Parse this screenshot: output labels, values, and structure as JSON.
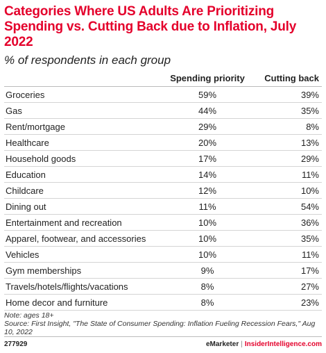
{
  "header": {
    "title": "Categories Where US Adults Are Prioritizing Spending vs. Cutting Back due to Inflation, July 2022",
    "subtitle": "% of respondents in each group"
  },
  "chart_data": {
    "type": "table",
    "title": "Categories Where US Adults Are Prioritizing Spending vs. Cutting Back due to Inflation, July 2022",
    "subtitle": "% of respondents in each group",
    "columns": [
      "",
      "Spending priority",
      "Cutting back"
    ],
    "rows": [
      {
        "category": "Groceries",
        "spending": "59%",
        "cutting": "39%"
      },
      {
        "category": "Gas",
        "spending": "44%",
        "cutting": "35%"
      },
      {
        "category": "Rent/mortgage",
        "spending": "29%",
        "cutting": "8%"
      },
      {
        "category": "Healthcare",
        "spending": "20%",
        "cutting": "13%"
      },
      {
        "category": "Household goods",
        "spending": "17%",
        "cutting": "29%"
      },
      {
        "category": "Education",
        "spending": "14%",
        "cutting": "11%"
      },
      {
        "category": "Childcare",
        "spending": "12%",
        "cutting": "10%"
      },
      {
        "category": "Dining out",
        "spending": "11%",
        "cutting": "54%"
      },
      {
        "category": "Entertainment and recreation",
        "spending": "10%",
        "cutting": "36%"
      },
      {
        "category": "Apparel, footwear, and accessories",
        "spending": "10%",
        "cutting": "35%"
      },
      {
        "category": "Vehicles",
        "spending": "10%",
        "cutting": "11%"
      },
      {
        "category": "Gym memberships",
        "spending": "9%",
        "cutting": "17%"
      },
      {
        "category": "Travels/hotels/flights/vacations",
        "spending": "8%",
        "cutting": "27%"
      },
      {
        "category": "Home decor and furniture",
        "spending": "8%",
        "cutting": "23%"
      }
    ]
  },
  "footer": {
    "note": "Note: ages 18+",
    "source": "Source: First Insight, \"The State of Consumer Spending: Inflation Fueling Recession Fears,\" Aug 10, 2022",
    "chart_id": "277929",
    "brand_emarketer": "eMarketer",
    "brand_separator": "|",
    "brand_insider": "InsiderIntelligence.com"
  },
  "colors": {
    "accent": "#e4002b",
    "text": "#222222",
    "rule": "#d4d4d4"
  }
}
